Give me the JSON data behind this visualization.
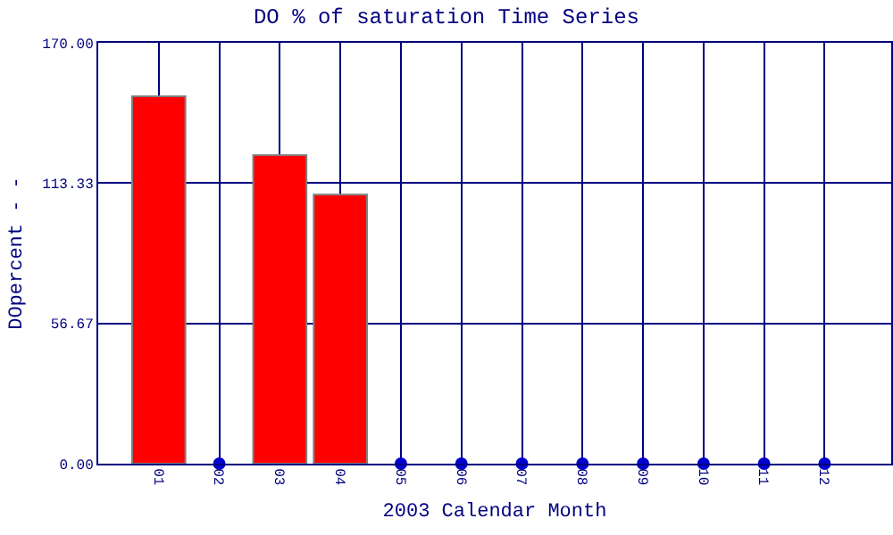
{
  "chart_data": {
    "type": "bar",
    "title": "DO % of saturation Time Series",
    "xlabel": "2003 Calendar Month",
    "ylabel": "DOpercent - -",
    "categories": [
      "01",
      "02",
      "03",
      "04",
      "05",
      "06",
      "07",
      "08",
      "09",
      "10",
      "11",
      "12"
    ],
    "series": [
      {
        "color": "#ff0000",
        "values": [
          148.4,
          null,
          124.6,
          108.7,
          null,
          null,
          null,
          null,
          null,
          null,
          null,
          null
        ]
      },
      {
        "type": "scatter",
        "color": "#0000cc",
        "values": [
          null,
          0,
          null,
          null,
          0,
          0,
          0,
          0,
          0,
          0,
          0,
          0
        ]
      }
    ],
    "ylim": [
      0,
      170
    ],
    "yticks": [
      {
        "value": 0,
        "label": "0.00"
      },
      {
        "value": 56.67,
        "label": "56.67"
      },
      {
        "value": 113.33,
        "label": "113.33"
      },
      {
        "value": 170,
        "label": "170.00"
      }
    ],
    "grid": true,
    "legend": false,
    "marker": "circle"
  }
}
